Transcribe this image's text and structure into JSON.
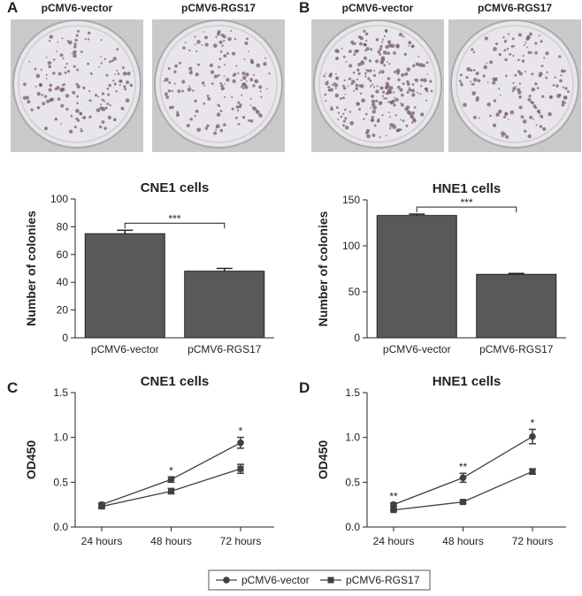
{
  "panel_labels": [
    "A",
    "B",
    "C",
    "D"
  ],
  "photo_labels": [
    [
      "pCMV6-vector",
      "pCMV6-RGS17"
    ],
    [
      "pCMV6-vector",
      "pCMV6-RGS17"
    ]
  ],
  "chart_data": [
    {
      "type": "bar",
      "title": "CNE1 cells",
      "ylabel": "Number of colonies",
      "categories": [
        "pCMV6-vector",
        "pCMV6-RGS17"
      ],
      "values": [
        75,
        48
      ],
      "errors": [
        2.5,
        2
      ],
      "color": "#595959",
      "ylim": [
        0,
        100
      ],
      "yticks": [
        0,
        20,
        40,
        60,
        80,
        100
      ],
      "significance": "***"
    },
    {
      "type": "bar",
      "title": "HNE1 cells",
      "ylabel": "Number of colonies",
      "categories": [
        "pCMV6-vector",
        "pCMV6-RGS17"
      ],
      "values": [
        133,
        69
      ],
      "errors": [
        1.5,
        1
      ],
      "color": "#595959",
      "ylim": [
        0,
        150
      ],
      "yticks": [
        0,
        50,
        100,
        150
      ],
      "significance": "***"
    },
    {
      "type": "line",
      "title": "CNE1 cells",
      "ylabel": "OD450",
      "categories": [
        "24 hours",
        "48 hours",
        "72 hours"
      ],
      "series": [
        {
          "name": "pCMV6-vector",
          "color": "#404040",
          "marker": "circle",
          "values": [
            0.25,
            0.53,
            0.94
          ],
          "errors": [
            0.02,
            0.03,
            0.06
          ]
        },
        {
          "name": "pCMV6-RGS17",
          "color": "#404040",
          "marker": "square",
          "values": [
            0.23,
            0.4,
            0.65
          ],
          "errors": [
            0.02,
            0.03,
            0.05
          ]
        }
      ],
      "ylim": [
        0,
        1.5
      ],
      "yticks": [
        {
          "value": 0,
          "label": "0.0"
        },
        {
          "value": 0.5,
          "label": "0.5"
        },
        {
          "value": 1,
          "label": "1.0"
        },
        {
          "value": 1.5,
          "label": "1.5"
        }
      ],
      "significance": [
        null,
        "*",
        "*"
      ]
    },
    {
      "type": "line",
      "title": "HNE1 cells",
      "ylabel": "OD450",
      "categories": [
        "24 hours",
        "48 hours",
        "72 hours"
      ],
      "series": [
        {
          "color": "#404040",
          "marker": "circle",
          "values": [
            0.25,
            0.55,
            1.01
          ],
          "errors": [
            0.02,
            0.05,
            0.08
          ]
        },
        {
          "color": "#404040",
          "marker": "square",
          "values": [
            0.19,
            0.28,
            0.62
          ],
          "errors": [
            0.01,
            0.02,
            0.03
          ]
        }
      ],
      "ylim": [
        0,
        1.5
      ],
      "yticks": [
        {
          "value": 0,
          "label": "0.0"
        },
        {
          "value": 0.5,
          "label": "0.5"
        },
        {
          "value": 1,
          "label": "1.0"
        },
        {
          "value": 1.5,
          "label": "1.5"
        }
      ],
      "significance": [
        "**",
        "**",
        "*"
      ]
    }
  ]
}
